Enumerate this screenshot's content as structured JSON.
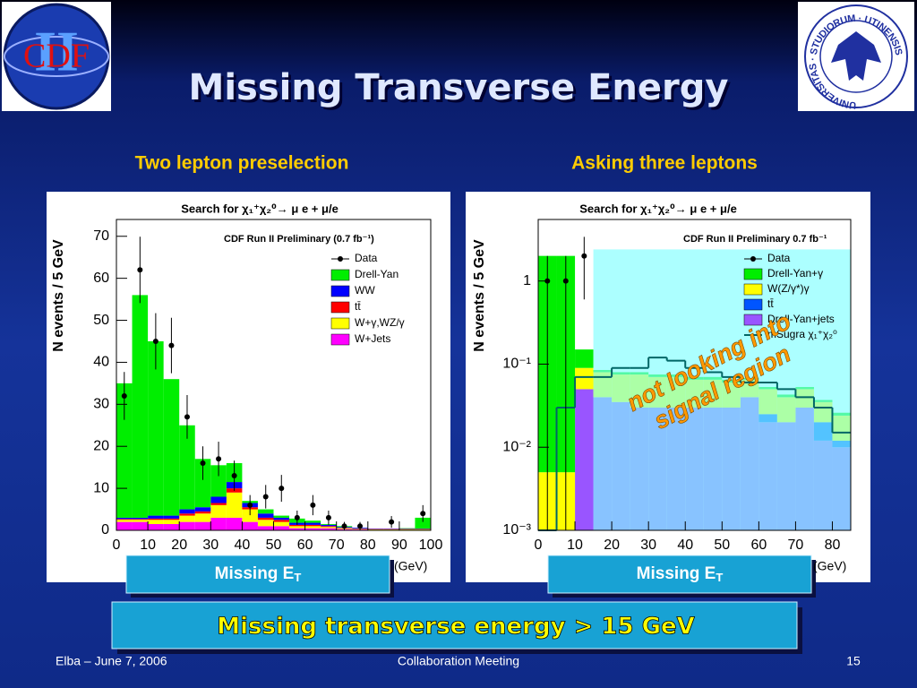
{
  "header": {
    "title": "Missing Transverse Energy",
    "logo_left": "CDF",
    "logo_left_numeral": "II",
    "logo_right": "UNIVERSITAS · STUDIORUM · UTINENSIS"
  },
  "panels": [
    "Two lepton preselection",
    "Asking three leptons"
  ],
  "chart_data": [
    {
      "type": "histogram",
      "title": "Search for χ₁⁺χ₂⁰→ μ e + μ/e",
      "subtitle": "CDF Run II Preliminary (0.7 fb⁻¹)",
      "xlabel": "Missing E",
      "xlabel_sub": "T",
      "xunit": "(GeV)",
      "ylabel": "N events / 5 GeV",
      "bins": [
        0,
        5,
        10,
        15,
        20,
        25,
        30,
        35,
        40,
        45,
        50,
        55,
        60,
        65,
        70,
        75,
        80,
        85,
        90,
        95,
        100
      ],
      "xlim": [
        0,
        100
      ],
      "xticks": [
        0,
        10,
        20,
        30,
        40,
        50,
        60,
        70,
        80,
        90,
        100
      ],
      "ylim": [
        0,
        74
      ],
      "yticks": [
        0,
        10,
        20,
        30,
        40,
        50,
        60,
        70
      ],
      "log": false,
      "series": [
        {
          "name": "Data",
          "style": "points",
          "color": "#000000",
          "x": [
            2.5,
            7.5,
            12.5,
            17.5,
            22.5,
            27.5,
            32.5,
            37.5,
            42.5,
            47.5,
            52.5,
            57.5,
            62.5,
            67.5,
            72.5,
            77.5,
            82.5,
            87.5,
            92.5,
            97.5
          ],
          "values": [
            32,
            62,
            45,
            44,
            27,
            16,
            17,
            13,
            6,
            8,
            10,
            3,
            6,
            3,
            1,
            1,
            null,
            2,
            null,
            4
          ],
          "errors": [
            5.7,
            7.9,
            6.7,
            6.6,
            5.2,
            4,
            4.1,
            3.6,
            2.4,
            2.8,
            3.2,
            1.7,
            2.4,
            1.7,
            1,
            1,
            null,
            1.4,
            null,
            2
          ]
        },
        {
          "name": "Drell-Yan",
          "style": "fill",
          "color": "#00ee00",
          "values": [
            32,
            53,
            41.5,
            32.5,
            20,
            11.5,
            7.5,
            4.5,
            0.5,
            1,
            0.5,
            1,
            0.5,
            0.2,
            0.2,
            0,
            0,
            0,
            0.1,
            2.6
          ]
        },
        {
          "name": "WW",
          "style": "fill",
          "color": "#0000ff",
          "values": [
            0.3,
            0.3,
            0.7,
            0.7,
            1,
            1,
            1.5,
            1.5,
            1,
            1,
            0.5,
            0.5,
            0.5,
            0.3,
            0.2,
            0.2,
            0.1,
            0.1,
            0.1,
            0.1
          ]
        },
        {
          "name": "tt̄",
          "style": "fill",
          "color": "#ff0000",
          "values": [
            0.2,
            0.2,
            0.3,
            0.3,
            0.5,
            0.5,
            0.5,
            1,
            0.5,
            0.5,
            0.5,
            0.3,
            0.3,
            0.2,
            0.1,
            0.1,
            0.1,
            0.1,
            0.1,
            0.1
          ]
        },
        {
          "name": "W+γ,WZ/γ",
          "style": "fill",
          "color": "#ffff00",
          "values": [
            0.5,
            0.5,
            1,
            1,
            1.5,
            2,
            3,
            6,
            3,
            1.5,
            1,
            0.5,
            0.5,
            0.3,
            0.2,
            0.1,
            0.1,
            0.1,
            0.1,
            0.1
          ]
        },
        {
          "name": "W+Jets",
          "style": "fill",
          "color": "#ff00ff",
          "values": [
            2,
            2,
            1.5,
            1.5,
            2,
            2,
            3,
            3,
            2,
            1,
            1,
            0.5,
            0.5,
            0.5,
            0.3,
            0.2,
            0.1,
            0.1,
            0.1,
            0.1
          ]
        }
      ]
    },
    {
      "type": "histogram",
      "title": "Search for χ₁⁺χ₂⁰→ μ e + μ/e",
      "subtitle": "CDF Run II Preliminary 0.7 fb⁻¹",
      "xlabel": "Missing E",
      "xlabel_sub": "T",
      "xunit": "(GeV)",
      "ylabel": "N events / 5 GeV",
      "bins": [
        0,
        5,
        10,
        15,
        20,
        25,
        30,
        35,
        40,
        45,
        50,
        55,
        60,
        65,
        70,
        75,
        80,
        85
      ],
      "xlim": [
        0,
        85
      ],
      "xticks": [
        0,
        10,
        20,
        30,
        40,
        50,
        60,
        70,
        80
      ],
      "ylim": [
        0.001,
        5.5
      ],
      "yticks": [
        {
          "value": 0.001,
          "label": "10⁻³"
        },
        {
          "value": 0.01,
          "label": "10⁻²"
        },
        {
          "value": 0.1,
          "label": "10⁻¹"
        },
        1
      ],
      "log": true,
      "highlight": {
        "xlim": [
          15,
          85
        ],
        "ylim": [
          0.001,
          2.4
        ],
        "color": "#80ffff"
      },
      "annotation": [
        "not looking into",
        "signal region"
      ],
      "annotation_color": "#ff9900",
      "series": [
        {
          "name": "Data",
          "style": "points",
          "color": "#000000",
          "x": [
            2.5,
            7.5,
            12.5
          ],
          "values": [
            1,
            1,
            2
          ],
          "errors": [
            1,
            1,
            1.4
          ]
        },
        {
          "name": "Drell-Yan+γ",
          "style": "fill",
          "color": "#00ee00",
          "values": [
            2,
            2,
            0.06,
            0.005,
            0.005,
            0.005,
            0.005,
            0.005,
            0.005,
            0.005,
            0.005,
            0.003,
            0.003,
            0.003,
            0.003,
            0.002,
            0.002
          ]
        },
        {
          "name": "W(Z/γ*)γ",
          "style": "fill",
          "color": "#ffff00",
          "values": [
            0.005,
            0.005,
            0.04,
            0.04,
            0.04,
            0.045,
            0.04,
            0.04,
            0.035,
            0.035,
            0.03,
            0.025,
            0.025,
            0.02,
            0.02,
            0.015,
            0.012
          ]
        },
        {
          "name": "tt̄",
          "style": "fill",
          "color": "#0055ff",
          "values": [
            null,
            null,
            null,
            null,
            null,
            null,
            null,
            null,
            null,
            null,
            null,
            null,
            0.005,
            null,
            null,
            0.008,
            0.002
          ]
        },
        {
          "name": "Drell-Yan+jets",
          "style": "fill",
          "color": "#9955ff",
          "values": [
            null,
            null,
            0.05,
            0.04,
            0.035,
            0.03,
            0.03,
            0.03,
            0.03,
            0.03,
            0.03,
            0.04,
            0.02,
            0.02,
            0.03,
            0.012,
            0.01
          ]
        },
        {
          "name": "mSugra χ₁⁺χ₂⁰",
          "style": "step",
          "color": "#006666",
          "values": [
            0.001,
            0.03,
            0.07,
            0.07,
            0.09,
            0.09,
            0.12,
            0.11,
            0.09,
            0.08,
            0.07,
            0.06,
            0.06,
            0.05,
            0.04,
            0.03,
            0.015
          ]
        }
      ]
    }
  ],
  "conclusion": "Missing transverse energy > 15 GeV",
  "footer": {
    "left": "Elba – June 7, 2006",
    "center": "Collaboration Meeting",
    "right": "15"
  }
}
